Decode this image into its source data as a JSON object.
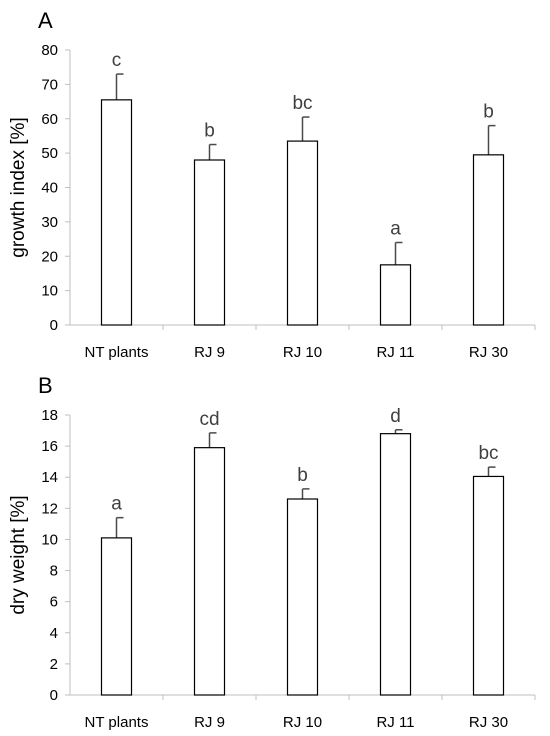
{
  "chart_data": [
    {
      "panel": "A",
      "type": "bar",
      "categories": [
        "NT plants",
        "RJ 9",
        "RJ 10",
        "RJ 11",
        "RJ 30"
      ],
      "values": [
        65.5,
        48,
        53.5,
        17.5,
        49.5
      ],
      "errors": [
        7.5,
        4.5,
        7,
        6.5,
        8.5
      ],
      "significance": [
        "c",
        "b",
        "bc",
        "a",
        "b"
      ],
      "ylabel": "growth index [%]",
      "ylim": [
        0,
        80
      ],
      "yticks": [
        "0",
        "10",
        "20",
        "30",
        "40",
        "50",
        "60",
        "70",
        "80"
      ],
      "grid": false
    },
    {
      "panel": "B",
      "type": "bar",
      "categories": [
        "NT plants",
        "RJ 9",
        "RJ 10",
        "RJ 11",
        "RJ 30"
      ],
      "values": [
        10.1,
        15.9,
        12.6,
        16.8,
        14.05
      ],
      "errors": [
        1.3,
        0.95,
        0.65,
        0.25,
        0.6
      ],
      "significance": [
        "a",
        "cd",
        "b",
        "d",
        "bc"
      ],
      "ylabel": "dry weight [%]",
      "ylim": [
        0,
        18
      ],
      "yticks": [
        "0",
        "2",
        "4",
        "6",
        "8",
        "10",
        "12",
        "14",
        "16",
        "18"
      ],
      "grid": false
    }
  ],
  "colors": {
    "bar_fill": "#ffffff",
    "bar_stroke": "#000000",
    "error_bar": "#4a4a4a",
    "significance_text": "#404040"
  }
}
